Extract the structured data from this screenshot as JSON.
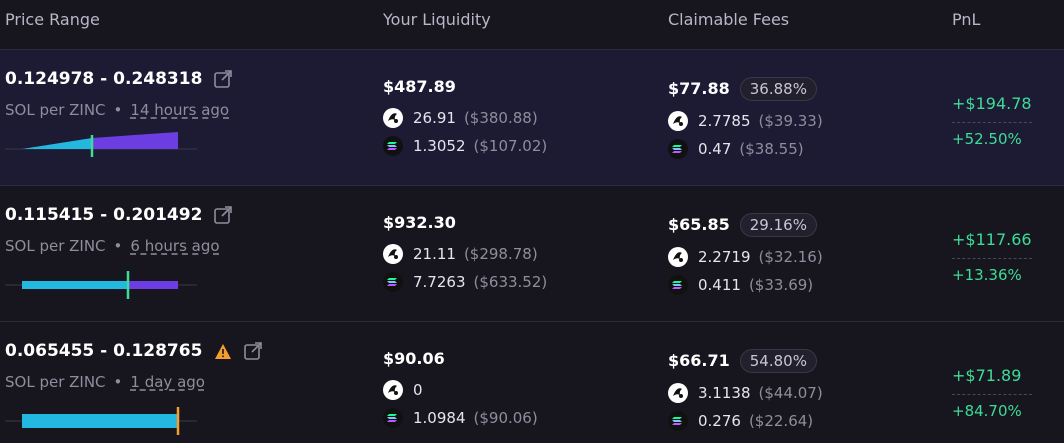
{
  "header": {
    "columns": [
      "Price Range",
      "Your Liquidity",
      "Claimable Fees",
      "PnL"
    ]
  },
  "rows": [
    {
      "price_range": "0.124978 - 0.248318",
      "pair": "SOL per ZINC",
      "age": "14 hours ago",
      "liquidity": {
        "total": "$487.89",
        "tokens": [
          {
            "amount": "26.91",
            "usd": "($380.88)"
          },
          {
            "amount": "1.3052",
            "usd": "($107.02)"
          }
        ]
      },
      "fees": {
        "total": "$77.88",
        "percent": "36.88%",
        "tokens": [
          {
            "amount": "2.7785",
            "usd": "($39.33)"
          },
          {
            "amount": "0.47",
            "usd": "($38.55)"
          }
        ]
      },
      "pnl": {
        "value": "+$194.78",
        "percent": "+52.50%"
      }
    },
    {
      "price_range": "0.115415 - 0.201492",
      "pair": "SOL per ZINC",
      "age": "6 hours ago",
      "liquidity": {
        "total": "$932.30",
        "tokens": [
          {
            "amount": "21.11",
            "usd": "($298.78)"
          },
          {
            "amount": "7.7263",
            "usd": "($633.52)"
          }
        ]
      },
      "fees": {
        "total": "$65.85",
        "percent": "29.16%",
        "tokens": [
          {
            "amount": "2.2719",
            "usd": "($32.16)"
          },
          {
            "amount": "0.411",
            "usd": "($33.69)"
          }
        ]
      },
      "pnl": {
        "value": "+$117.66",
        "percent": "+13.36%"
      }
    },
    {
      "price_range": "0.065455 - 0.128765",
      "pair": "SOL per ZINC",
      "age": "1 day ago",
      "liquidity": {
        "total": "$90.06",
        "tokens": [
          {
            "amount": "0"
          },
          {
            "amount": "1.0984",
            "usd": "($90.06)"
          }
        ]
      },
      "fees": {
        "total": "$66.71",
        "percent": "54.80%",
        "tokens": [
          {
            "amount": "3.1138",
            "usd": "($44.07)"
          },
          {
            "amount": "0.276",
            "usd": "($22.64)"
          }
        ]
      },
      "pnl": {
        "value": "+$71.89",
        "percent": "+84.70%"
      }
    }
  ]
}
